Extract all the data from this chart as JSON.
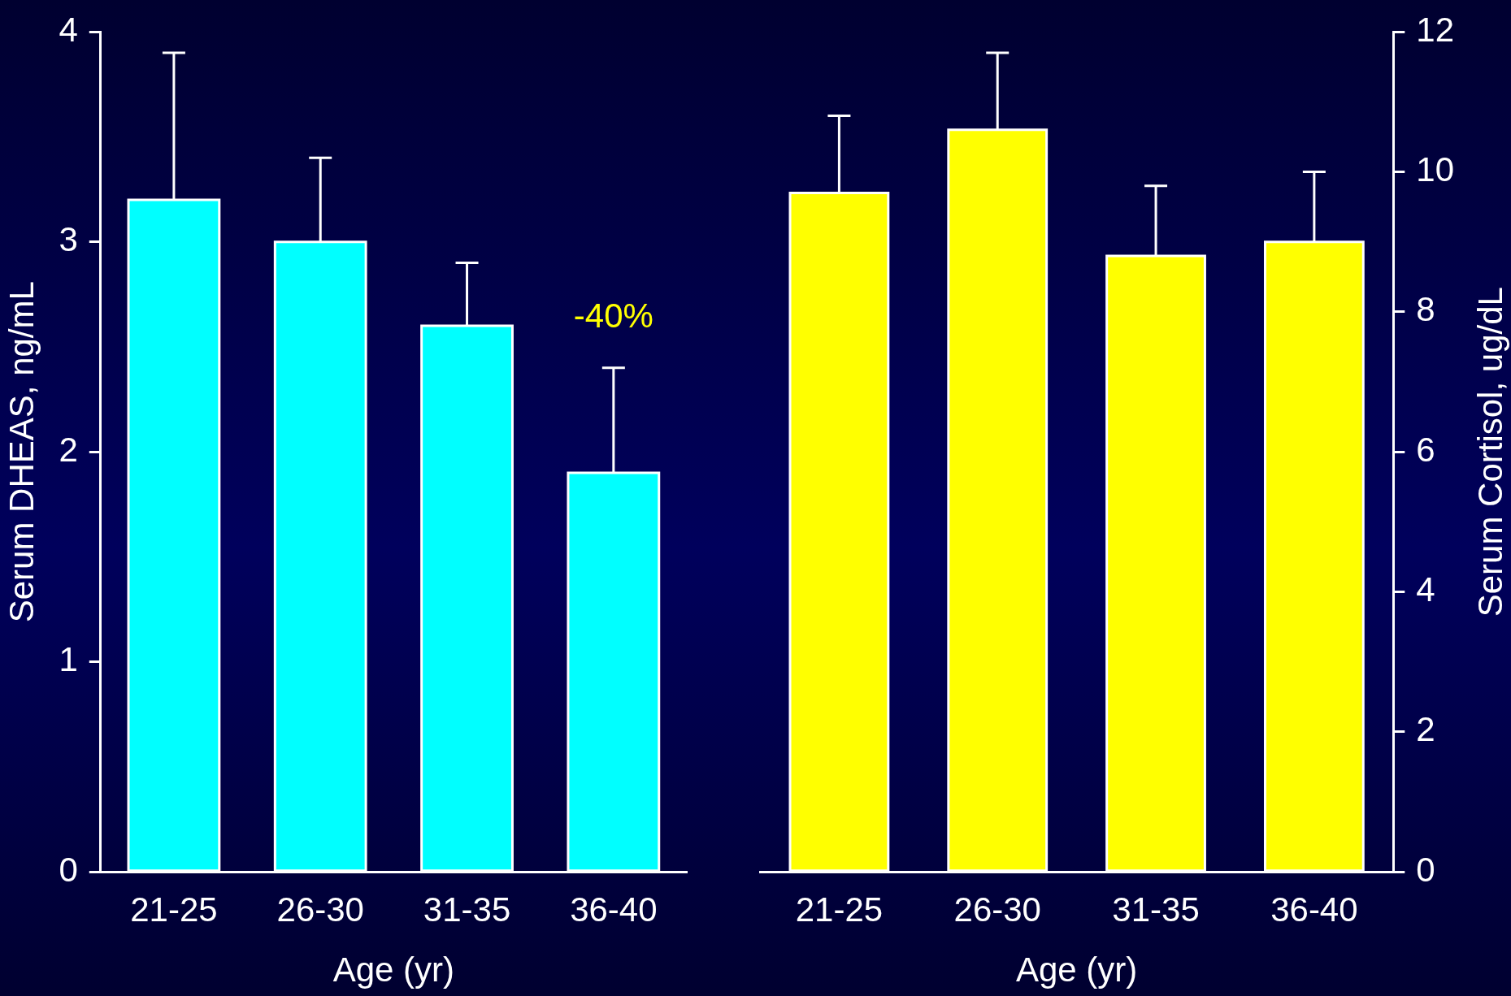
{
  "chart_data": [
    {
      "type": "bar",
      "xlabel": "Age (yr)",
      "ylabel": "Serum DHEAS, ng/mL",
      "categories": [
        "21-25",
        "26-30",
        "31-35",
        "36-40"
      ],
      "series": [
        {
          "color": "#00ffff",
          "values": [
            3.2,
            3.0,
            2.6,
            1.9
          ],
          "errors": [
            [
              3.2,
              3.9
            ],
            [
              3.0,
              3.4
            ],
            [
              2.6,
              2.9
            ],
            [
              1.9,
              2.4
            ]
          ]
        }
      ],
      "ylim": [
        0,
        4
      ],
      "yticks": [
        0,
        1,
        2,
        3,
        4
      ],
      "grid": false,
      "legend": false,
      "annotations": [
        "-40%"
      ]
    },
    {
      "type": "bar",
      "xlabel": "Age (yr)",
      "y2label": "Serum Cortisol, ug/dL",
      "categories": [
        "21-25",
        "26-30",
        "31-35",
        "36-40"
      ],
      "series": [
        {
          "color": "#ffff00",
          "axis": "y2",
          "values": [
            9.7,
            10.6,
            8.8,
            9.0
          ],
          "errors": [
            [
              9.7,
              10.8
            ],
            [
              10.6,
              11.7
            ],
            [
              8.8,
              9.8
            ],
            [
              9.0,
              10.0
            ]
          ]
        }
      ],
      "y2lim": [
        0,
        12
      ],
      "y2ticks": [
        0,
        2,
        4,
        6,
        8,
        10,
        12
      ],
      "grid": false,
      "legend": false
    }
  ]
}
